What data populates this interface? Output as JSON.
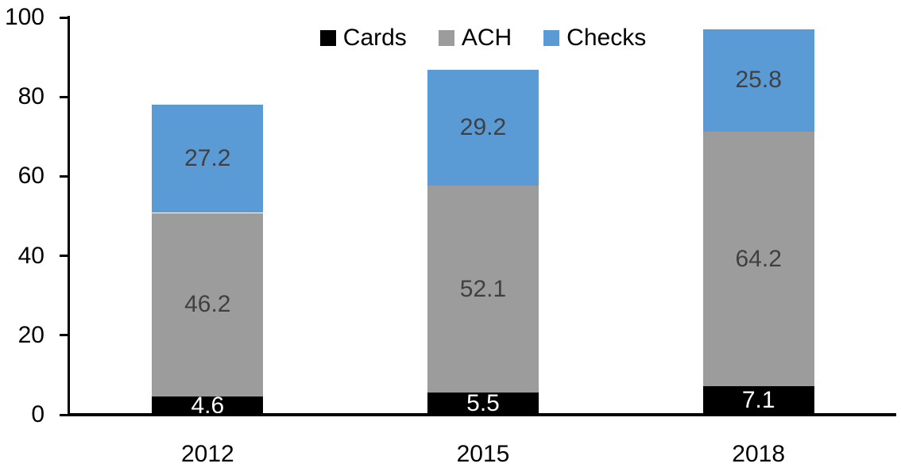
{
  "chart_data": {
    "type": "bar",
    "stacked": true,
    "title": "",
    "categories": [
      "2012",
      "2015",
      "2018"
    ],
    "series": [
      {
        "name": "Cards",
        "color": "#000000",
        "label_color": "#FFFFFF",
        "values": [
          4.6,
          5.5,
          7.1
        ]
      },
      {
        "name": "ACH",
        "color": "#9C9C9C",
        "label_color": "#404040",
        "values": [
          46.2,
          52.1,
          64.2
        ]
      },
      {
        "name": "Checks",
        "color": "#5B9BD5",
        "label_color": "#404040",
        "values": [
          27.2,
          29.2,
          25.8
        ]
      }
    ],
    "totals": [
      78.0,
      86.8,
      97.1
    ],
    "ylim": [
      0,
      100
    ],
    "y_ticks": [
      0,
      20,
      40,
      60,
      80,
      100
    ],
    "legend_position": "top",
    "grid": false,
    "axis_color": "#000000",
    "tick_label_color": "#000000"
  }
}
